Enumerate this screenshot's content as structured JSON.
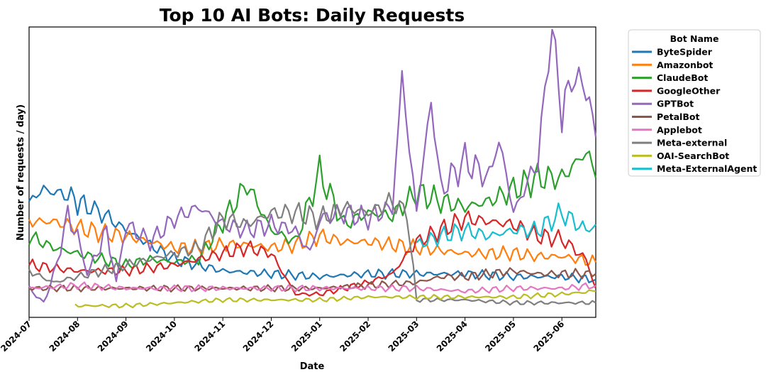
{
  "chart_data": {
    "type": "line",
    "title": "Top 10 AI Bots: Daily Requests",
    "xlabel": "Date",
    "ylabel": "Number of requests / day)",
    "y_ticks_shown": false,
    "x_tick_labels": [
      "2024-07",
      "2024-08",
      "2024-09",
      "2024-10",
      "2024-11",
      "2024-12",
      "2025-01",
      "2025-02",
      "2025-03",
      "2025-04",
      "2025-05",
      "2025-06"
    ],
    "x_domain_months": [
      0,
      11.7
    ],
    "ylim": [
      0,
      100
    ],
    "legend": {
      "title": "Bot Name",
      "placement": "outside-right"
    },
    "series": [
      {
        "name": "ByteSpider",
        "color": "#1f77b4",
        "values": [
          [
            0,
            40
          ],
          [
            0.3,
            44
          ],
          [
            0.8,
            42
          ],
          [
            1.2,
            38
          ],
          [
            1.5,
            36
          ],
          [
            2,
            30
          ],
          [
            2.5,
            25
          ],
          [
            3,
            20
          ],
          [
            3.5,
            18
          ],
          [
            4,
            16
          ],
          [
            5,
            15
          ],
          [
            6,
            14
          ],
          [
            7,
            15
          ],
          [
            8,
            15
          ],
          [
            9,
            15
          ],
          [
            10,
            14
          ],
          [
            10.5,
            14
          ],
          [
            11,
            14
          ],
          [
            11.7,
            13
          ]
        ]
      },
      {
        "name": "Amazonbot",
        "color": "#ff7f0e",
        "values": [
          [
            0,
            33
          ],
          [
            0.5,
            33
          ],
          [
            1,
            31
          ],
          [
            1.5,
            29
          ],
          [
            2,
            28
          ],
          [
            2.5,
            26
          ],
          [
            3,
            24
          ],
          [
            3.5,
            24
          ],
          [
            4,
            25
          ],
          [
            4.5,
            25
          ],
          [
            5,
            24
          ],
          [
            5.5,
            25
          ],
          [
            6,
            28
          ],
          [
            6.5,
            26
          ],
          [
            7,
            26
          ],
          [
            7.5,
            25
          ],
          [
            8,
            24
          ],
          [
            8.5,
            23
          ],
          [
            9,
            22
          ],
          [
            9.5,
            22
          ],
          [
            10,
            22
          ],
          [
            10.5,
            21
          ],
          [
            11,
            21
          ],
          [
            11.7,
            19
          ]
        ]
      },
      {
        "name": "ClaudeBot",
        "color": "#2ca02c",
        "values": [
          [
            0,
            28
          ],
          [
            0.5,
            24
          ],
          [
            1,
            22
          ],
          [
            1.5,
            20
          ],
          [
            2,
            18
          ],
          [
            2.5,
            20
          ],
          [
            3,
            19
          ],
          [
            3.5,
            20
          ],
          [
            4.5,
            46
          ],
          [
            5,
            30
          ],
          [
            5.5,
            26
          ],
          [
            6,
            50
          ],
          [
            6.5,
            32
          ],
          [
            7,
            36
          ],
          [
            7.5,
            35
          ],
          [
            8,
            43
          ],
          [
            8.5,
            40
          ],
          [
            9,
            38
          ],
          [
            9.5,
            40
          ],
          [
            10,
            44
          ],
          [
            10.5,
            48
          ],
          [
            11,
            48
          ],
          [
            11.5,
            57
          ],
          [
            11.7,
            48
          ]
        ]
      },
      {
        "name": "GoogleOther",
        "color": "#d62728",
        "values": [
          [
            0,
            18
          ],
          [
            0.5,
            17
          ],
          [
            1,
            16
          ],
          [
            1.5,
            16
          ],
          [
            2,
            16
          ],
          [
            2.5,
            17
          ],
          [
            3,
            18
          ],
          [
            3.5,
            20
          ],
          [
            4,
            22
          ],
          [
            4.5,
            24
          ],
          [
            5,
            22
          ],
          [
            5.5,
            8
          ],
          [
            6,
            8
          ],
          [
            6.5,
            10
          ],
          [
            7,
            12
          ],
          [
            7.5,
            15
          ],
          [
            8,
            26
          ],
          [
            8.5,
            30
          ],
          [
            9,
            34
          ],
          [
            9.5,
            33
          ],
          [
            10,
            32
          ],
          [
            10.5,
            28
          ],
          [
            11,
            27
          ],
          [
            11.5,
            20
          ],
          [
            11.7,
            10
          ]
        ]
      },
      {
        "name": "GPTBot",
        "color": "#9467bd",
        "values": [
          [
            0,
            10
          ],
          [
            0.3,
            5
          ],
          [
            0.5,
            14
          ],
          [
            0.8,
            35
          ],
          [
            1,
            28
          ],
          [
            1.2,
            15
          ],
          [
            1.4,
            22
          ],
          [
            1.6,
            30
          ],
          [
            1.8,
            12
          ],
          [
            2,
            32
          ],
          [
            2.5,
            26
          ],
          [
            3,
            34
          ],
          [
            3.5,
            38
          ],
          [
            4,
            32
          ],
          [
            4.5,
            30
          ],
          [
            5,
            32
          ],
          [
            5.5,
            30
          ],
          [
            5.8,
            22
          ],
          [
            6,
            34
          ],
          [
            6.5,
            36
          ],
          [
            7,
            34
          ],
          [
            7.5,
            38
          ],
          [
            7.7,
            82
          ],
          [
            8,
            36
          ],
          [
            8.3,
            75
          ],
          [
            8.5,
            44
          ],
          [
            9,
            54
          ],
          [
            9.5,
            48
          ],
          [
            9.7,
            62
          ],
          [
            10,
            36
          ],
          [
            10.5,
            54
          ],
          [
            10.8,
            100
          ],
          [
            11,
            70
          ],
          [
            11.2,
            82
          ],
          [
            11.5,
            80
          ],
          [
            11.7,
            62
          ]
        ]
      },
      {
        "name": "PetalBot",
        "color": "#8c564b",
        "values": [
          [
            0,
            10
          ],
          [
            1,
            10
          ],
          [
            2,
            10
          ],
          [
            3,
            10
          ],
          [
            4,
            10
          ],
          [
            5,
            10
          ],
          [
            6,
            10
          ],
          [
            7,
            11
          ],
          [
            8,
            12
          ],
          [
            8.5,
            14
          ],
          [
            9,
            14
          ],
          [
            9.5,
            15
          ],
          [
            10,
            16
          ],
          [
            10.5,
            15
          ],
          [
            11,
            15
          ],
          [
            11.7,
            15
          ]
        ]
      },
      {
        "name": "Applebot",
        "color": "#e377c2",
        "values": [
          [
            0,
            10
          ],
          [
            1,
            11
          ],
          [
            2,
            10
          ],
          [
            3,
            10
          ],
          [
            4,
            10
          ],
          [
            5,
            10
          ],
          [
            6,
            10
          ],
          [
            7,
            10
          ],
          [
            8,
            10
          ],
          [
            9,
            9
          ],
          [
            10,
            10
          ],
          [
            11,
            10
          ],
          [
            11.7,
            11
          ]
        ]
      },
      {
        "name": "Meta-external",
        "color": "#7f7f7f",
        "values": [
          [
            0,
            16
          ],
          [
            0.5,
            12
          ],
          [
            1,
            14
          ],
          [
            1.5,
            16
          ],
          [
            2,
            18
          ],
          [
            2.5,
            20
          ],
          [
            3,
            22
          ],
          [
            3.5,
            24
          ],
          [
            4,
            34
          ],
          [
            4.5,
            32
          ],
          [
            5,
            36
          ],
          [
            5.5,
            36
          ],
          [
            6,
            34
          ],
          [
            6.5,
            38
          ],
          [
            7,
            36
          ],
          [
            7.5,
            40
          ],
          [
            7.8,
            36
          ],
          [
            8,
            6
          ],
          [
            9,
            6
          ],
          [
            10,
            5
          ],
          [
            11,
            5
          ],
          [
            11.7,
            5
          ]
        ]
      },
      {
        "name": "OAI-SearchBot",
        "color": "#bcbd22",
        "values": [
          [
            0.95,
            4
          ],
          [
            2,
            4
          ],
          [
            3,
            5
          ],
          [
            4,
            6
          ],
          [
            5,
            6
          ],
          [
            6,
            6
          ],
          [
            7,
            7
          ],
          [
            8,
            7
          ],
          [
            9,
            7
          ],
          [
            10,
            7
          ],
          [
            11,
            8
          ],
          [
            11.7,
            9
          ]
        ]
      },
      {
        "name": "Meta-ExternalAgent",
        "color": "#17becf",
        "values": [
          [
            8,
            25
          ],
          [
            8.5,
            28
          ],
          [
            9,
            30
          ],
          [
            9.5,
            28
          ],
          [
            10,
            30
          ],
          [
            10.5,
            30
          ],
          [
            11,
            36
          ],
          [
            11.5,
            30
          ],
          [
            11.7,
            32
          ]
        ]
      }
    ]
  }
}
